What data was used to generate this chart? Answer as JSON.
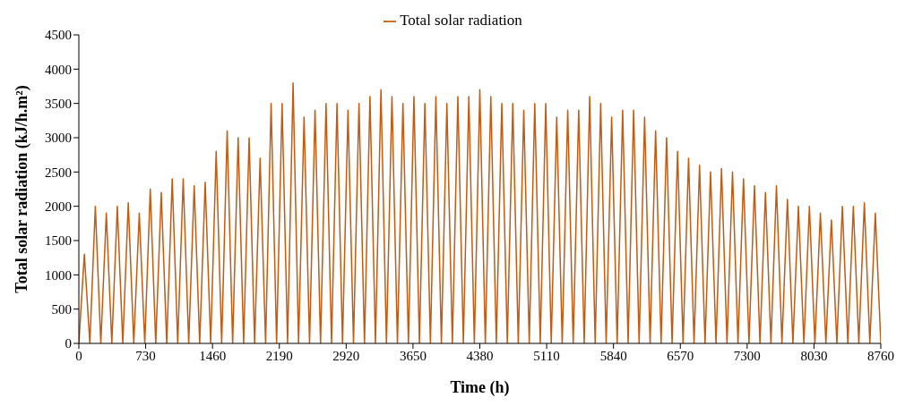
{
  "chart_data": {
    "type": "line",
    "xlabel": "Time (h)",
    "ylabel": "Total solar radiation (kJ/h.m²)",
    "x": [
      0,
      60,
      120,
      180,
      240,
      300,
      360,
      420,
      480,
      540,
      600,
      660,
      720,
      780,
      840,
      900,
      960,
      1020,
      1080,
      1140,
      1200,
      1260,
      1320,
      1380,
      1440,
      1500,
      1560,
      1620,
      1680,
      1740,
      1800,
      1860,
      1920,
      1980,
      2040,
      2100,
      2160,
      2220,
      2280,
      2340,
      2400,
      2460,
      2520,
      2580,
      2640,
      2700,
      2760,
      2820,
      2880,
      2940,
      3000,
      3060,
      3120,
      3180,
      3240,
      3300,
      3360,
      3420,
      3480,
      3540,
      3600,
      3660,
      3720,
      3780,
      3840,
      3900,
      3960,
      4020,
      4080,
      4140,
      4200,
      4260,
      4320,
      4380,
      4440,
      4500,
      4560,
      4620,
      4680,
      4740,
      4800,
      4860,
      4920,
      4980,
      5040,
      5100,
      5160,
      5220,
      5280,
      5340,
      5400,
      5460,
      5520,
      5580,
      5640,
      5700,
      5760,
      5820,
      5880,
      5940,
      6000,
      6060,
      6120,
      6180,
      6240,
      6300,
      6360,
      6420,
      6480,
      6540,
      6600,
      6660,
      6720,
      6780,
      6840,
      6900,
      6960,
      7020,
      7080,
      7140,
      7200,
      7260,
      7320,
      7380,
      7440,
      7500,
      7560,
      7620,
      7680,
      7740,
      7800,
      7860,
      7920,
      7980,
      8040,
      8100,
      8160,
      8220,
      8280,
      8340,
      8400,
      8460,
      8520,
      8580,
      8640,
      8700,
      8760
    ],
    "series": [
      {
        "name": "Total solar radiation",
        "color": "#c55a11",
        "values": [
          0,
          1300,
          0,
          2000,
          0,
          1900,
          0,
          2000,
          0,
          2050,
          0,
          1900,
          0,
          2250,
          0,
          2200,
          0,
          2400,
          0,
          2400,
          0,
          2300,
          0,
          2350,
          0,
          2800,
          0,
          3100,
          0,
          3000,
          0,
          3000,
          0,
          2700,
          0,
          3500,
          0,
          3500,
          0,
          3800,
          0,
          3300,
          0,
          3400,
          0,
          3500,
          0,
          3500,
          0,
          3400,
          0,
          3500,
          0,
          3600,
          0,
          3700,
          0,
          3600,
          0,
          3500,
          0,
          3600,
          0,
          3500,
          0,
          3600,
          0,
          3500,
          0,
          3600,
          0,
          3600,
          0,
          3700,
          0,
          3600,
          0,
          3500,
          0,
          3500,
          0,
          3400,
          0,
          3500,
          0,
          3500,
          0,
          3300,
          0,
          3400,
          0,
          3400,
          0,
          3600,
          0,
          3500,
          0,
          3300,
          0,
          3400,
          0,
          3400,
          0,
          3300,
          0,
          3100,
          0,
          3000,
          0,
          2800,
          0,
          2700,
          0,
          2600,
          0,
          2500,
          0,
          2550,
          0,
          2500,
          0,
          2400,
          0,
          2300,
          0,
          2200,
          0,
          2300,
          0,
          2100,
          0,
          2000,
          0,
          2000,
          0,
          1900,
          0,
          1800,
          0,
          2000,
          0,
          2000,
          0,
          2050,
          0,
          1900,
          0
        ]
      }
    ],
    "xlim": [
      0,
      8760
    ],
    "xticks": [
      0,
      730,
      1460,
      2190,
      2920,
      3650,
      4380,
      5110,
      5840,
      6570,
      7300,
      8030,
      8760
    ],
    "ylim": [
      0,
      4500
    ],
    "yticks": [
      0,
      500,
      1000,
      1500,
      2000,
      2500,
      3000,
      3500,
      4000,
      4500
    ],
    "grid": false,
    "legend": "top",
    "marker": "none",
    "line_style": "solid"
  }
}
